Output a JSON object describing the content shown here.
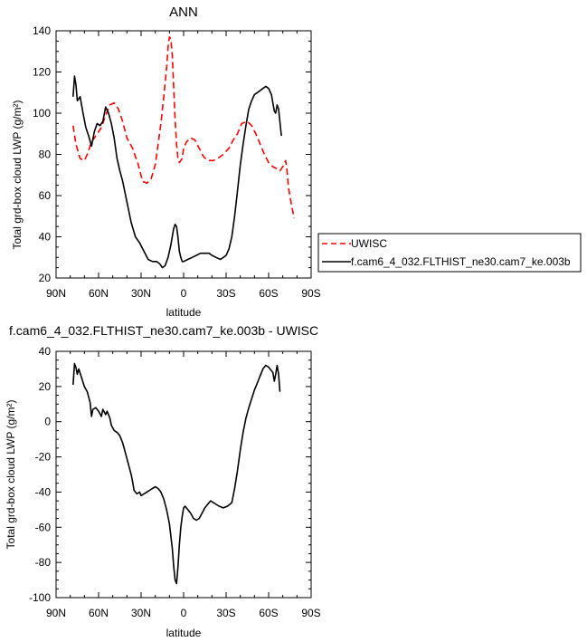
{
  "chart_data": [
    {
      "type": "line",
      "title": "ANN",
      "xlabel": "latitude",
      "ylabel": "Total grd-box cloud LWP (g/m²)",
      "xlim": [
        90,
        -90
      ],
      "ylim": [
        20,
        140
      ],
      "xticks": [
        {
          "v": 90,
          "label": "90N"
        },
        {
          "v": 60,
          "label": "60N"
        },
        {
          "v": 30,
          "label": "30N"
        },
        {
          "v": 0,
          "label": "0"
        },
        {
          "v": -30,
          "label": "30S"
        },
        {
          "v": -60,
          "label": "60S"
        },
        {
          "v": -90,
          "label": "90S"
        }
      ],
      "yticks": [
        20,
        40,
        60,
        80,
        100,
        120,
        140
      ],
      "legend_position": "right",
      "series": [
        {
          "name": "UWISC",
          "color": "#ff0000",
          "dash": "dashed",
          "points": [
            [
              78,
              94
            ],
            [
              76,
              85
            ],
            [
              73,
              78
            ],
            [
              70,
              77
            ],
            [
              68,
              80
            ],
            [
              65,
              86
            ],
            [
              62,
              89
            ],
            [
              58,
              93
            ],
            [
              55,
              99
            ],
            [
              52,
              104
            ],
            [
              49,
              105
            ],
            [
              46,
              102
            ],
            [
              43,
              96
            ],
            [
              40,
              88
            ],
            [
              36,
              83
            ],
            [
              32,
              75
            ],
            [
              29,
              67
            ],
            [
              26,
              66
            ],
            [
              23,
              68
            ],
            [
              20,
              75
            ],
            [
              18,
              85
            ],
            [
              16,
              95
            ],
            [
              14,
              108
            ],
            [
              12,
              122
            ],
            [
              11,
              132
            ],
            [
              10,
              137
            ],
            [
              9,
              136
            ],
            [
              8,
              128
            ],
            [
              7,
              113
            ],
            [
              6,
              97
            ],
            [
              5,
              85
            ],
            [
              4,
              78
            ],
            [
              3,
              76
            ],
            [
              1,
              78
            ],
            [
              0,
              83
            ],
            [
              -2,
              86
            ],
            [
              -5,
              88
            ],
            [
              -8,
              87
            ],
            [
              -11,
              83
            ],
            [
              -14,
              79
            ],
            [
              -17,
              77
            ],
            [
              -21,
              77
            ],
            [
              -24,
              78
            ],
            [
              -28,
              80
            ],
            [
              -32,
              83
            ],
            [
              -35,
              87
            ],
            [
              -38,
              90
            ],
            [
              -41,
              95
            ],
            [
              -45,
              96
            ],
            [
              -48,
              94
            ],
            [
              -51,
              90
            ],
            [
              -54,
              85
            ],
            [
              -57,
              80
            ],
            [
              -60,
              76
            ],
            [
              -63,
              74
            ],
            [
              -66,
              73
            ],
            [
              -68,
              72
            ],
            [
              -70,
              74
            ],
            [
              -72,
              77
            ],
            [
              -73,
              72
            ],
            [
              -74,
              64
            ],
            [
              -76,
              56
            ],
            [
              -78,
              49
            ]
          ]
        },
        {
          "name": "f.cam6_4_032.FLTHIST_ne30.cam7_ke.003b",
          "color": "#000000",
          "dash": "solid",
          "points": [
            [
              78,
              108
            ],
            [
              77,
              118
            ],
            [
              76,
              114
            ],
            [
              75,
              106
            ],
            [
              73,
              108
            ],
            [
              71,
              100
            ],
            [
              69,
              93
            ],
            [
              67,
              89
            ],
            [
              65,
              84
            ],
            [
              63,
              91
            ],
            [
              61,
              95
            ],
            [
              59,
              94
            ],
            [
              57,
              96
            ],
            [
              55,
              103
            ],
            [
              53,
              100
            ],
            [
              51,
              95
            ],
            [
              49,
              88
            ],
            [
              47,
              78
            ],
            [
              45,
              72
            ],
            [
              43,
              67
            ],
            [
              40,
              57
            ],
            [
              37,
              47
            ],
            [
              34,
              40
            ],
            [
              31,
              37
            ],
            [
              28,
              33
            ],
            [
              25,
              29
            ],
            [
              22,
              28
            ],
            [
              19,
              28
            ],
            [
              17,
              27
            ],
            [
              15,
              25
            ],
            [
              13,
              26
            ],
            [
              11,
              30
            ],
            [
              9,
              36
            ],
            [
              7,
              44
            ],
            [
              6,
              46
            ],
            [
              5,
              45
            ],
            [
              4,
              40
            ],
            [
              3,
              33
            ],
            [
              2,
              30
            ],
            [
              1,
              28
            ],
            [
              0,
              28
            ],
            [
              -3,
              29
            ],
            [
              -6,
              30
            ],
            [
              -9,
              31
            ],
            [
              -12,
              32
            ],
            [
              -15,
              32
            ],
            [
              -18,
              32
            ],
            [
              -20,
              31
            ],
            [
              -23,
              30
            ],
            [
              -26,
              29
            ],
            [
              -28,
              30
            ],
            [
              -30,
              31
            ],
            [
              -32,
              34
            ],
            [
              -34,
              40
            ],
            [
              -36,
              50
            ],
            [
              -38,
              62
            ],
            [
              -40,
              75
            ],
            [
              -42,
              85
            ],
            [
              -44,
              94
            ],
            [
              -46,
              102
            ],
            [
              -48,
              106
            ],
            [
              -50,
              109
            ],
            [
              -52,
              110
            ],
            [
              -54,
              111
            ],
            [
              -56,
              112
            ],
            [
              -58,
              113
            ],
            [
              -60,
              112
            ],
            [
              -62,
              109
            ],
            [
              -64,
              101
            ],
            [
              -65,
              100
            ],
            [
              -66,
              104
            ],
            [
              -67,
              102
            ],
            [
              -69,
              89
            ]
          ]
        }
      ]
    },
    {
      "type": "line",
      "title": "f.cam6_4_032.FLTHIST_ne30.cam7_ke.003b - UWISC",
      "xlabel": "latitude",
      "ylabel": "Total grd-box cloud LWP (g/m²)",
      "xlim": [
        90,
        -90
      ],
      "ylim": [
        -100,
        40
      ],
      "xticks": [
        {
          "v": 90,
          "label": "90N"
        },
        {
          "v": 60,
          "label": "60N"
        },
        {
          "v": 30,
          "label": "30N"
        },
        {
          "v": 0,
          "label": "0"
        },
        {
          "v": -30,
          "label": "30S"
        },
        {
          "v": -60,
          "label": "60S"
        },
        {
          "v": -90,
          "label": "90S"
        }
      ],
      "yticks": [
        40,
        20,
        0,
        -20,
        -40,
        -60,
        -80,
        -100
      ],
      "series": [
        {
          "color": "#000000",
          "dash": "solid",
          "points": [
            [
              78,
              21
            ],
            [
              77,
              33
            ],
            [
              76,
              31
            ],
            [
              75,
              27
            ],
            [
              74,
              30
            ],
            [
              72,
              25
            ],
            [
              70,
              20
            ],
            [
              68,
              17
            ],
            [
              66,
              11
            ],
            [
              65,
              3
            ],
            [
              64,
              7
            ],
            [
              62,
              8
            ],
            [
              60,
              6
            ],
            [
              58,
              3
            ],
            [
              57,
              7
            ],
            [
              55,
              4
            ],
            [
              54,
              6
            ],
            [
              52,
              2
            ],
            [
              51,
              -2
            ],
            [
              49,
              -5
            ],
            [
              47,
              -6
            ],
            [
              45,
              -8
            ],
            [
              43,
              -12
            ],
            [
              41,
              -18
            ],
            [
              39,
              -24
            ],
            [
              37,
              -30
            ],
            [
              36,
              -34
            ],
            [
              35,
              -39
            ],
            [
              33,
              -41
            ],
            [
              31,
              -40
            ],
            [
              30,
              -42
            ],
            [
              28,
              -41
            ],
            [
              26,
              -40
            ],
            [
              24,
              -39
            ],
            [
              22,
              -38
            ],
            [
              20,
              -37
            ],
            [
              18,
              -38
            ],
            [
              16,
              -40
            ],
            [
              14,
              -44
            ],
            [
              12,
              -50
            ],
            [
              10,
              -58
            ],
            [
              8,
              -72
            ],
            [
              7,
              -82
            ],
            [
              6,
              -90
            ],
            [
              5,
              -92
            ],
            [
              4,
              -83
            ],
            [
              3,
              -70
            ],
            [
              2,
              -60
            ],
            [
              1,
              -54
            ],
            [
              0,
              -49
            ],
            [
              -1,
              -48
            ],
            [
              -3,
              -50
            ],
            [
              -5,
              -52
            ],
            [
              -7,
              -55
            ],
            [
              -9,
              -56
            ],
            [
              -11,
              -55
            ],
            [
              -13,
              -52
            ],
            [
              -15,
              -49
            ],
            [
              -17,
              -47
            ],
            [
              -19,
              -45
            ],
            [
              -21,
              -46
            ],
            [
              -23,
              -47
            ],
            [
              -25,
              -48
            ],
            [
              -28,
              -49
            ],
            [
              -31,
              -48
            ],
            [
              -34,
              -46
            ],
            [
              -36,
              -38
            ],
            [
              -38,
              -28
            ],
            [
              -40,
              -16
            ],
            [
              -42,
              -6
            ],
            [
              -44,
              2
            ],
            [
              -46,
              8
            ],
            [
              -48,
              13
            ],
            [
              -50,
              18
            ],
            [
              -52,
              22
            ],
            [
              -54,
              26
            ],
            [
              -56,
              30
            ],
            [
              -58,
              32
            ],
            [
              -60,
              31
            ],
            [
              -62,
              29
            ],
            [
              -63,
              28
            ],
            [
              -64,
              23
            ],
            [
              -65,
              27
            ],
            [
              -66,
              32
            ],
            [
              -67,
              27
            ],
            [
              -68,
              17
            ]
          ]
        }
      ]
    }
  ]
}
